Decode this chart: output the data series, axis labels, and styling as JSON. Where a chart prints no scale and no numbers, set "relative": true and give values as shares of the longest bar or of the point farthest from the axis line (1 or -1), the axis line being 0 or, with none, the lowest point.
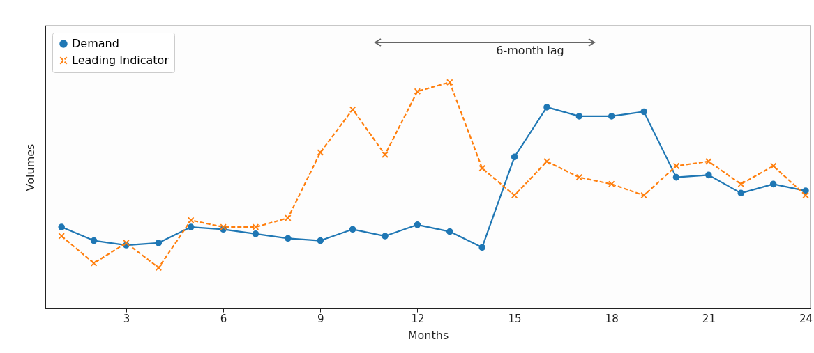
{
  "chart_data": {
    "type": "line",
    "xlabel": "Months",
    "ylabel": "Volumes",
    "relative": true,
    "x": [
      1,
      2,
      3,
      4,
      5,
      6,
      7,
      8,
      9,
      10,
      11,
      12,
      13,
      14,
      15,
      16,
      17,
      18,
      19,
      20,
      21,
      22,
      23,
      24
    ],
    "xlim": [
      0.5,
      24.15
    ],
    "xticks": [
      3,
      6,
      9,
      12,
      15,
      18,
      21,
      24
    ],
    "series": [
      {
        "name": "Demand",
        "color": "#1f77b4",
        "marker": "circle",
        "line_style": "solid",
        "values": [
          0.36,
          0.3,
          0.28,
          0.29,
          0.36,
          0.35,
          0.33,
          0.31,
          0.3,
          0.35,
          0.32,
          0.37,
          0.34,
          0.27,
          0.67,
          0.89,
          0.85,
          0.85,
          0.87,
          0.58,
          0.59,
          0.51,
          0.55,
          0.52
        ]
      },
      {
        "name": "Leading Indicator",
        "color": "#ff7f0e",
        "marker": "cross",
        "line_style": "dashed",
        "values": [
          0.32,
          0.2,
          0.29,
          0.18,
          0.39,
          0.36,
          0.36,
          0.4,
          0.69,
          0.88,
          0.68,
          0.96,
          1,
          0.62,
          0.5,
          0.65,
          0.58,
          0.55,
          0.5,
          0.63,
          0.65,
          0.55,
          0.63,
          0.5
        ]
      }
    ],
    "annotations": [
      "6-month lag"
    ],
    "legend": "top left",
    "grid": false
  }
}
